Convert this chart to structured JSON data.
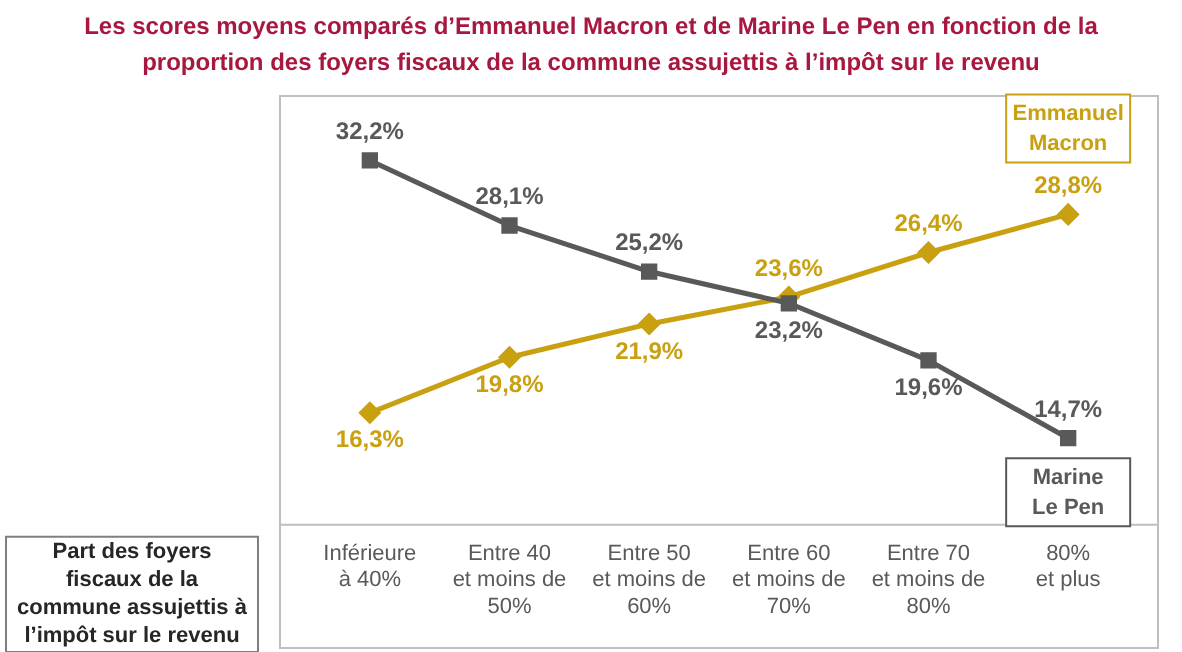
{
  "chart_data": {
    "type": "line",
    "title": "Les scores moyens comparés d’Emmanuel Macron et de Marine Le Pen en fonction de la proportion des foyers fiscaux de la commune assujettis à l’impôt sur le revenu",
    "xlabel": "Part des foyers fiscaux de la commune assujettis à l’impôt sur le revenu",
    "categories": [
      "Inférieure\nà 40%",
      "Entre 40\net moins de\n50%",
      "Entre 50\net moins de\n60%",
      "Entre 60\net moins de\n70%",
      "Entre 70\net moins de\n80%",
      "80%\net plus"
    ],
    "series": [
      {
        "name": "Marine Le Pen",
        "color": "#595959",
        "marker": "square",
        "values": [
          32.2,
          28.1,
          25.2,
          23.2,
          19.6,
          14.7
        ],
        "value_labels": [
          "32,2%",
          "28,1%",
          "25,2%",
          "23,2%",
          "19,6%",
          "14,7%"
        ]
      },
      {
        "name": "Emmanuel Macron",
        "color": "#c9a010",
        "marker": "diamond",
        "values": [
          16.3,
          19.8,
          21.9,
          23.6,
          26.4,
          28.8
        ],
        "value_labels": [
          "16,3%",
          "19,8%",
          "21,9%",
          "23,6%",
          "26,4%",
          "28,8%"
        ]
      }
    ],
    "tick_labels": "x",
    "grid": false,
    "legend": false
  }
}
